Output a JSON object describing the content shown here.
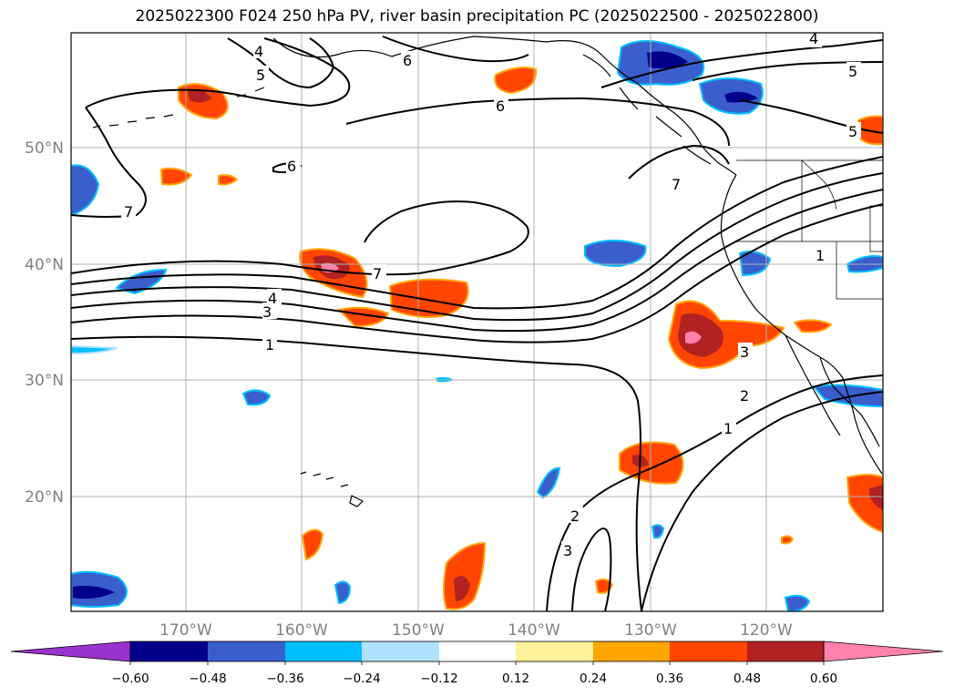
{
  "title": "2025022300 F024 250 hPa PV, river basin precipitation PC (2025022500 - 2025022800)",
  "lon_labels": [
    "170°W",
    "160°W",
    "150°W",
    "140°W",
    "130°W",
    "120°W"
  ],
  "lat_labels": [
    "50°N",
    "40°N",
    "30°N",
    "20°N"
  ],
  "colorbar": {
    "ticks": [
      "−0.60",
      "−0.48",
      "−0.36",
      "−0.24",
      "−0.12",
      "0.12",
      "0.24",
      "0.36",
      "0.48",
      "0.60"
    ],
    "colors": [
      "#9a32cd",
      "#00008b",
      "#3a5fcd",
      "#00bfff",
      "#b0e2ff",
      "#ffffff",
      "#fff09a",
      "#ffa500",
      "#ff4500",
      "#b22222",
      "#ff82ab"
    ]
  },
  "contour_labels": [
    "1",
    "2",
    "3",
    "4",
    "5",
    "6",
    "7"
  ],
  "colors": {
    "contour": "#000000",
    "coast": "#000000",
    "grid": "#b0b0b0",
    "tick_label": "#808080"
  }
}
